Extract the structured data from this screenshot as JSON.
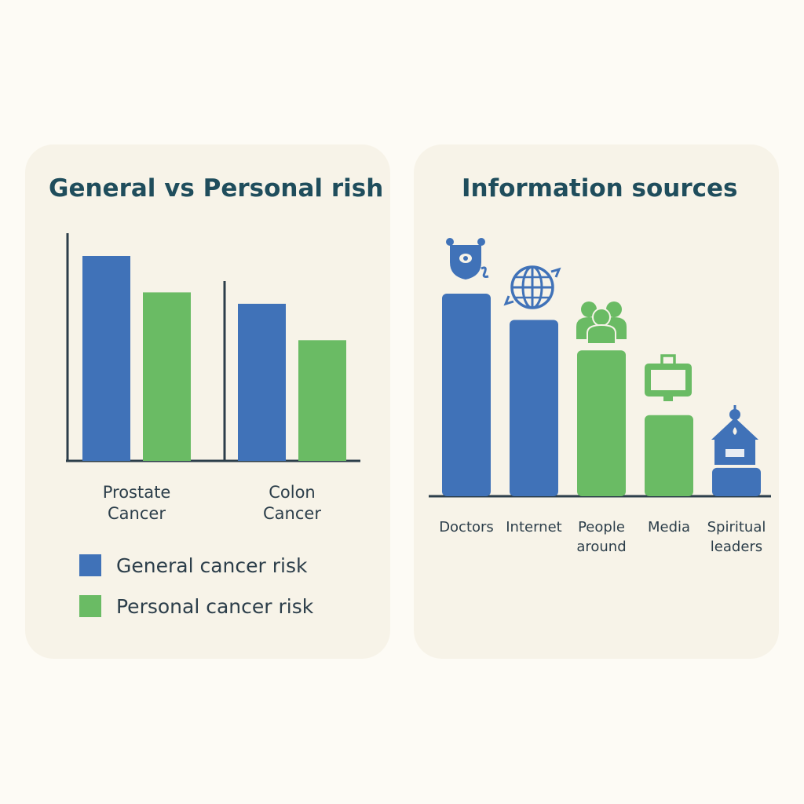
{
  "colors": {
    "general": "#4072b8",
    "personal": "#6abb64",
    "axis": "#2c3e4a"
  },
  "chart_data": [
    {
      "type": "bar",
      "title": "General vs Personal rish",
      "categories": [
        "Prostate\nCancer",
        "Colon\nCancer"
      ],
      "ylim": [
        0,
        100
      ],
      "series": [
        {
          "name": "General cancer risk",
          "values": [
            90,
            69
          ]
        },
        {
          "name": "Personal cancer risk",
          "values": [
            74,
            53
          ]
        }
      ],
      "legend": "bottom",
      "grid": false
    },
    {
      "type": "bar",
      "title": "Information sources",
      "categories": [
        "Doctors",
        "Internet",
        "People\naround",
        "Media",
        "Spiritual\nleaders"
      ],
      "values": [
        100,
        87,
        72,
        40,
        14
      ],
      "ylim": [
        0,
        100
      ],
      "bar_colors": [
        "general",
        "general",
        "personal",
        "personal",
        "general"
      ],
      "icons": [
        "stethoscope-icon",
        "globe-icon",
        "people-icon",
        "tv-icon",
        "temple-icon"
      ],
      "grid": false
    }
  ]
}
